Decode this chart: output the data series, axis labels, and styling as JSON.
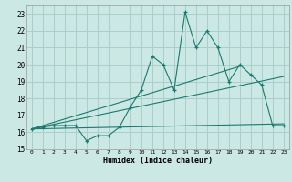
{
  "xlabel": "Humidex (Indice chaleur)",
  "bg_color": "#cce8e4",
  "grid_color": "#aacfcb",
  "line_color": "#1a7a6e",
  "xlim": [
    -0.5,
    23.5
  ],
  "ylim": [
    15,
    23.5
  ],
  "yticks": [
    15,
    16,
    17,
    18,
    19,
    20,
    21,
    22,
    23
  ],
  "xticks": [
    0,
    1,
    2,
    3,
    4,
    5,
    6,
    7,
    8,
    9,
    10,
    11,
    12,
    13,
    14,
    15,
    16,
    17,
    18,
    19,
    20,
    21,
    22,
    23
  ],
  "main_series_x": [
    0,
    1,
    2,
    3,
    4,
    5,
    6,
    7,
    8,
    9,
    10,
    11,
    12,
    13,
    14,
    15,
    16,
    17,
    18,
    19,
    20,
    21,
    22,
    23
  ],
  "main_series_y": [
    16.2,
    16.3,
    16.4,
    16.4,
    16.4,
    15.5,
    15.8,
    15.8,
    16.3,
    17.5,
    18.5,
    20.5,
    20.0,
    18.5,
    23.1,
    21.0,
    22.0,
    21.0,
    19.0,
    20.0,
    19.4,
    18.8,
    16.4,
    16.4
  ],
  "line1_x": [
    0,
    23
  ],
  "line1_y": [
    16.2,
    16.5
  ],
  "line2_x": [
    0,
    23
  ],
  "line2_y": [
    16.2,
    19.3
  ],
  "line3_x": [
    0,
    19
  ],
  "line3_y": [
    16.2,
    19.9
  ]
}
